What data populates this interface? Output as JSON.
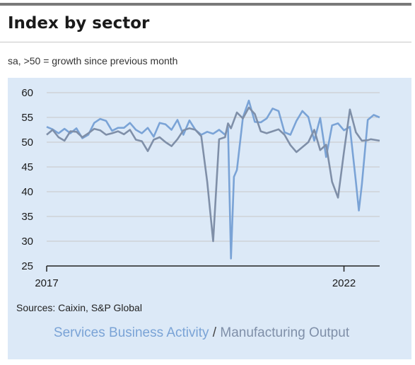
{
  "title": "Index by sector",
  "subtitle": "sa, >50 = growth since previous month",
  "source": "Sources: Caixin, S&P Global",
  "legend_separator": " / ",
  "colors": {
    "services": "#7aa3d6",
    "manufacturing": "#7f8fa8",
    "panel_background": "#dce9f7",
    "grid": "#c7c7c7",
    "axis": "#222222"
  },
  "chart_data": {
    "type": "line",
    "title": "Index by sector",
    "ylim": [
      25,
      60
    ],
    "yticks": [
      25,
      30,
      35,
      40,
      45,
      50,
      55,
      60
    ],
    "xticks": [
      {
        "label": "2017",
        "x": 2017.0
      },
      {
        "label": "2022",
        "x": 2022.0
      }
    ],
    "xlim": [
      2017.0,
      2022.6
    ],
    "grid": "horizontal",
    "legend": "bottom-center",
    "series": [
      {
        "name": "Services Business Activity",
        "color": "#7aa3d6",
        "x": [
          2017.0,
          2017.1,
          2017.2,
          2017.3,
          2017.4,
          2017.5,
          2017.6,
          2017.7,
          2017.8,
          2017.9,
          2018.0,
          2018.1,
          2018.2,
          2018.3,
          2018.4,
          2018.5,
          2018.6,
          2018.7,
          2018.8,
          2018.9,
          2019.0,
          2019.1,
          2019.2,
          2019.3,
          2019.4,
          2019.5,
          2019.6,
          2019.7,
          2019.8,
          2019.9,
          2020.0,
          2020.05,
          2020.1,
          2020.15,
          2020.2,
          2020.3,
          2020.4,
          2020.5,
          2020.6,
          2020.7,
          2020.8,
          2020.9,
          2021.0,
          2021.1,
          2021.2,
          2021.3,
          2021.4,
          2021.5,
          2021.6,
          2021.7,
          2021.8,
          2021.9,
          2022.0,
          2022.1,
          2022.2,
          2022.25,
          2022.3,
          2022.4,
          2022.5,
          2022.6
        ],
        "values": [
          53.1,
          52.6,
          51.8,
          52.7,
          51.8,
          52.8,
          50.8,
          51.5,
          53.9,
          54.7,
          54.3,
          52.3,
          52.9,
          52.9,
          53.9,
          52.5,
          51.8,
          52.9,
          51.1,
          53.9,
          53.6,
          52.5,
          54.5,
          51.5,
          54.4,
          52.5,
          51.5,
          52.1,
          51.7,
          52.5,
          51.5,
          53.0,
          26.5,
          43.0,
          44.4,
          55.0,
          58.4,
          54.1,
          54.0,
          54.8,
          56.8,
          56.3,
          52.0,
          51.5,
          54.3,
          56.3,
          55.1,
          50.3,
          54.9,
          47.0,
          53.4,
          53.8,
          52.4,
          53.1,
          42.0,
          36.2,
          41.4,
          54.5,
          55.5,
          55.0
        ]
      },
      {
        "name": "Manufacturing Output",
        "color": "#7f8fa8",
        "x": [
          2017.0,
          2017.1,
          2017.2,
          2017.3,
          2017.4,
          2017.5,
          2017.6,
          2017.7,
          2017.8,
          2017.9,
          2018.0,
          2018.1,
          2018.2,
          2018.3,
          2018.4,
          2018.5,
          2018.6,
          2018.7,
          2018.8,
          2018.9,
          2019.0,
          2019.1,
          2019.2,
          2019.3,
          2019.4,
          2019.5,
          2019.6,
          2019.7,
          2019.8,
          2019.9,
          2020.0,
          2020.05,
          2020.1,
          2020.2,
          2020.3,
          2020.4,
          2020.5,
          2020.6,
          2020.7,
          2020.8,
          2020.9,
          2021.0,
          2021.1,
          2021.2,
          2021.3,
          2021.4,
          2021.5,
          2021.6,
          2021.7,
          2021.8,
          2021.9,
          2022.0,
          2022.1,
          2022.2,
          2022.3,
          2022.4,
          2022.45,
          2022.5,
          2022.6
        ],
        "values": [
          51.5,
          52.5,
          51.0,
          50.3,
          52.2,
          52.1,
          51.0,
          51.8,
          52.7,
          52.4,
          51.5,
          51.8,
          52.2,
          51.6,
          52.5,
          50.5,
          50.2,
          48.2,
          50.5,
          51.0,
          50.0,
          49.2,
          50.6,
          52.4,
          52.8,
          52.5,
          51.2,
          42.0,
          30.0,
          50.6,
          51.0,
          53.8,
          52.8,
          56.0,
          54.8,
          57.0,
          55.7,
          52.2,
          51.8,
          52.2,
          52.6,
          51.5,
          49.4,
          48.0,
          49.0,
          50.0,
          52.5,
          48.4,
          49.5,
          42.0,
          38.8,
          48.0,
          56.6,
          52.0,
          50.3,
          50.4,
          50.6,
          50.5,
          50.3
        ]
      }
    ]
  }
}
